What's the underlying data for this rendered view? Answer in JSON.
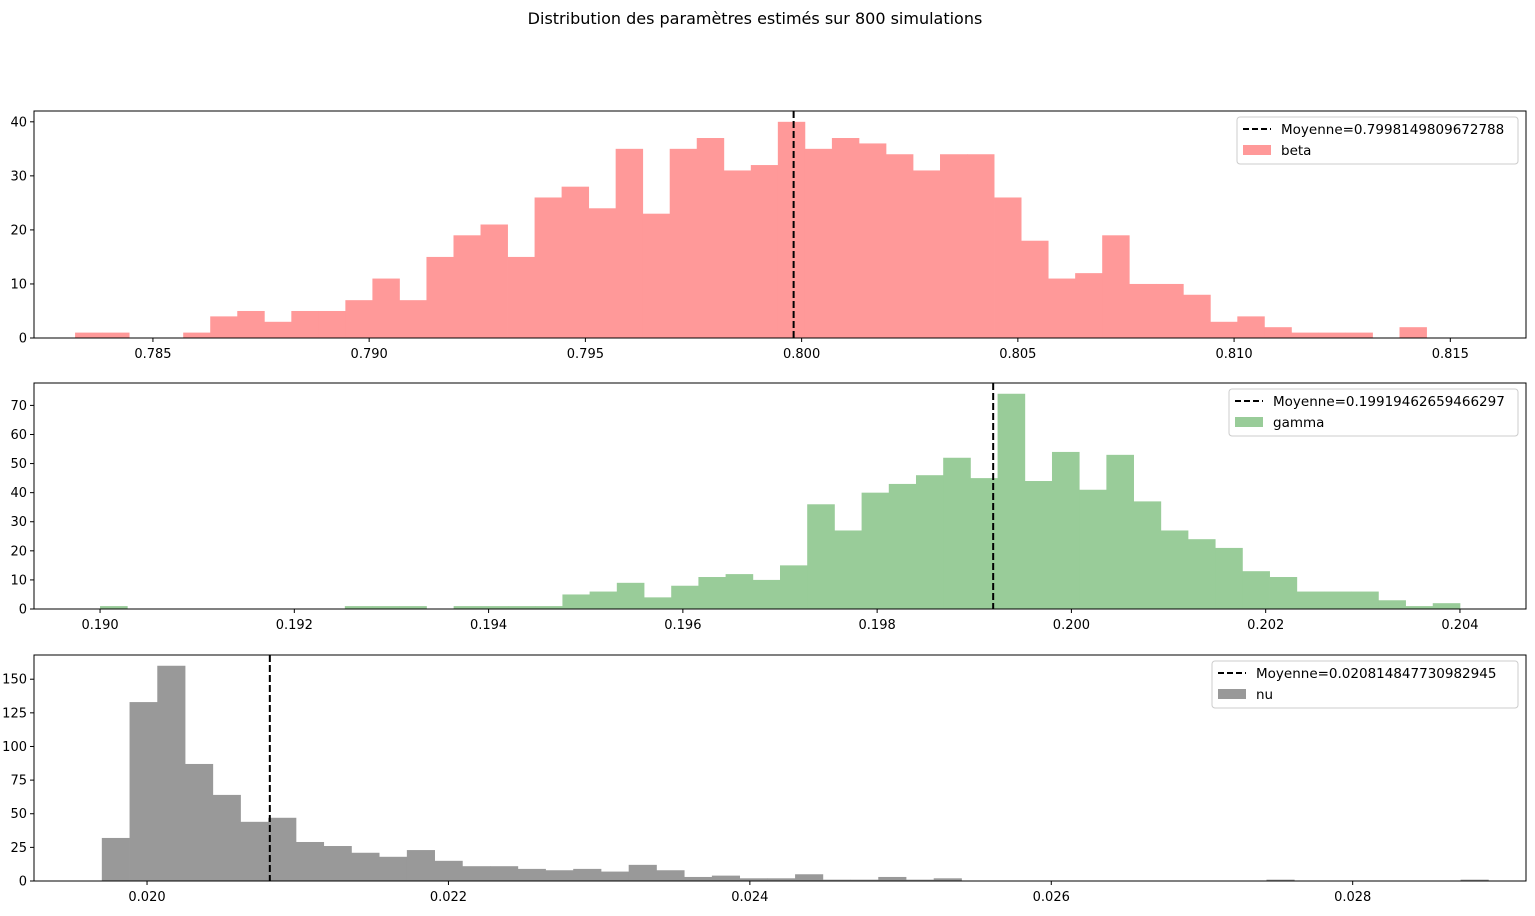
{
  "suptitle": "Distribution des paramètres estimés sur 800 simulations",
  "chart_data": [
    {
      "type": "bar",
      "title": "",
      "xlabel": "",
      "ylabel": "",
      "color": "#ff9999",
      "xlim": [
        0.78225,
        0.81675
      ],
      "ylim": [
        0,
        42
      ],
      "xticks": [
        0.785,
        0.79,
        0.795,
        0.8,
        0.805,
        0.81,
        0.815
      ],
      "xtick_labels": [
        "0.785",
        "0.790",
        "0.795",
        "0.800",
        "0.805",
        "0.810",
        "0.815"
      ],
      "yticks": [
        0,
        10,
        20,
        30,
        40
      ],
      "ytick_labels": [
        "0",
        "10",
        "20",
        "30",
        "40"
      ],
      "bin_start": 0.7832,
      "bin_width": 0.000625,
      "values": [
        1,
        1,
        0,
        0,
        1,
        4,
        5,
        3,
        5,
        5,
        7,
        11,
        7,
        15,
        19,
        21,
        15,
        26,
        28,
        24,
        35,
        23,
        35,
        37,
        31,
        32,
        40,
        35,
        37,
        36,
        34,
        31,
        34,
        34,
        26,
        18,
        11,
        12,
        19,
        10,
        10,
        8,
        3,
        4,
        2,
        1,
        1,
        1,
        0,
        2
      ],
      "mean": 0.7998149809672788,
      "legend": {
        "position": "top-right",
        "entries": [
          {
            "kind": "line",
            "label": "Moyenne=0.7998149809672788"
          },
          {
            "kind": "patch",
            "label": "beta"
          }
        ]
      }
    },
    {
      "type": "bar",
      "title": "",
      "xlabel": "",
      "ylabel": "",
      "color": "#99cc99",
      "xlim": [
        0.18932,
        0.20468
      ],
      "ylim": [
        0,
        77.7
      ],
      "xticks": [
        0.19,
        0.192,
        0.194,
        0.196,
        0.198,
        0.2,
        0.202,
        0.204
      ],
      "xtick_labels": [
        "0.190",
        "0.192",
        "0.194",
        "0.196",
        "0.198",
        "0.200",
        "0.202",
        "0.204"
      ],
      "yticks": [
        0,
        10,
        20,
        30,
        40,
        50,
        60,
        70
      ],
      "ytick_labels": [
        "0",
        "10",
        "20",
        "30",
        "40",
        "50",
        "60",
        "70"
      ],
      "bin_start": 0.19,
      "bin_width": 0.00028,
      "values": [
        1,
        0,
        0,
        0,
        0,
        0,
        0,
        0,
        0,
        1,
        1,
        1,
        0,
        1,
        1,
        1,
        1,
        5,
        6,
        9,
        4,
        8,
        11,
        12,
        10,
        15,
        36,
        27,
        40,
        43,
        46,
        52,
        45,
        74,
        44,
        54,
        41,
        53,
        37,
        27,
        24,
        21,
        13,
        11,
        6,
        6,
        6,
        3,
        1,
        2
      ],
      "mean": 0.19919462659466297,
      "legend": {
        "position": "top-right",
        "entries": [
          {
            "kind": "line",
            "label": "Moyenne=0.19919462659466297"
          },
          {
            "kind": "patch",
            "label": "gamma"
          }
        ]
      }
    },
    {
      "type": "bar",
      "title": "",
      "xlabel": "",
      "ylabel": "",
      "color": "#999999",
      "xlim": [
        0.01925,
        0.02915
      ],
      "ylim": [
        0,
        168
      ],
      "xticks": [
        0.02,
        0.022,
        0.024,
        0.026,
        0.028
      ],
      "xtick_labels": [
        "0.020",
        "0.022",
        "0.024",
        "0.026",
        "0.028"
      ],
      "yticks": [
        0,
        25,
        50,
        75,
        100,
        125,
        150
      ],
      "ytick_labels": [
        "0",
        "25",
        "50",
        "75",
        "100",
        "125",
        "150"
      ],
      "bin_start": 0.0197,
      "bin_width": 0.000184,
      "values": [
        32,
        133,
        160,
        87,
        64,
        44,
        47,
        29,
        26,
        21,
        18,
        23,
        15,
        11,
        11,
        9,
        8,
        9,
        7,
        12,
        8,
        3,
        4,
        2,
        2,
        5,
        1,
        1,
        3,
        1,
        2,
        0,
        0,
        0,
        0,
        0,
        0,
        0,
        0,
        0,
        0,
        0,
        1,
        0,
        0,
        0,
        0,
        0,
        0,
        1
      ],
      "mean": 0.020814847730982945,
      "legend": {
        "position": "top-right",
        "entries": [
          {
            "kind": "line",
            "label": "Moyenne=0.020814847730982945"
          },
          {
            "kind": "patch",
            "label": "nu"
          }
        ]
      }
    }
  ]
}
